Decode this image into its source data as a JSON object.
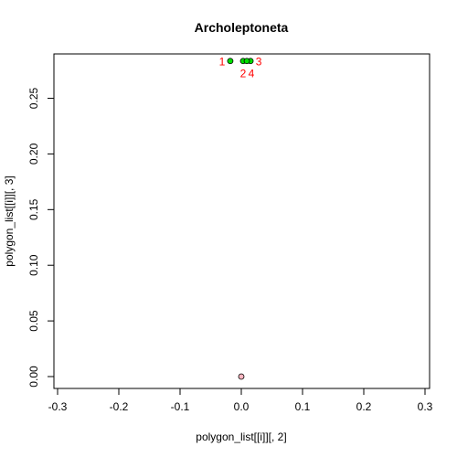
{
  "chart_data": {
    "type": "scatter",
    "title": "Archoleptoneta",
    "xlabel": "polygon_list[[i]][, 2]",
    "ylabel": "polygon_list[[i]][, 3]",
    "xlim": [
      -0.3,
      0.3
    ],
    "ylim": [
      0,
      0.28
    ],
    "xticks": [
      "-0.3",
      "-0.2",
      "-0.1",
      "0.0",
      "0.1",
      "0.2",
      "0.3"
    ],
    "yticks": [
      "0.00",
      "0.05",
      "0.10",
      "0.15",
      "0.20",
      "0.25"
    ],
    "grid": false,
    "series": [
      {
        "points": [
          {
            "x": -0.018,
            "y": 0.2835,
            "label": "1"
          },
          {
            "x": 0.003,
            "y": 0.2835,
            "label": "2"
          },
          {
            "x": 0.015,
            "y": 0.2835,
            "label": "3"
          },
          {
            "x": 0.009,
            "y": 0.2835,
            "label": "4"
          }
        ],
        "fill": "#00e000",
        "label_color": "#ff0000"
      },
      {
        "points": [
          {
            "x": 0.0,
            "y": 0.0
          }
        ],
        "fill": "#ffb6c1"
      }
    ]
  }
}
